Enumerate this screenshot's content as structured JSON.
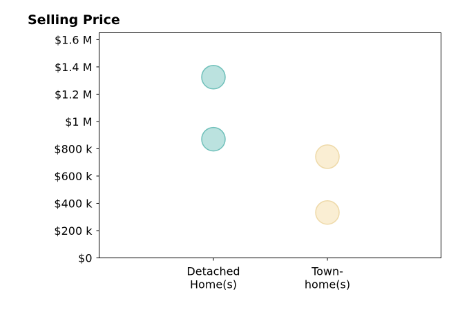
{
  "chart_data": {
    "type": "scatter",
    "title": "Selling Price",
    "xlabel": "",
    "ylabel": "",
    "categories": [
      [
        "Detached",
        "Home(s)"
      ],
      [
        "Town-",
        "home(s)"
      ]
    ],
    "ylim": [
      0,
      1650000
    ],
    "yticks": [
      0,
      200000,
      400000,
      600000,
      800000,
      1000000,
      1200000,
      1400000,
      1600000
    ],
    "ytick_labels": [
      "$0",
      "$200 k",
      "$400 k",
      "$600 k",
      "$800 k",
      "$1 M",
      "$1.2 M",
      "$1.4 M",
      "$1.6 M"
    ],
    "grid": false,
    "series": [
      {
        "category_index": 0,
        "values": [
          1325000,
          870000
        ],
        "fill": "#8ecfca",
        "stroke": "#6fc0ba"
      },
      {
        "category_index": 1,
        "values": [
          742000,
          333000
        ],
        "fill": "#f6e2b6",
        "stroke": "#eed9a8"
      }
    ]
  }
}
